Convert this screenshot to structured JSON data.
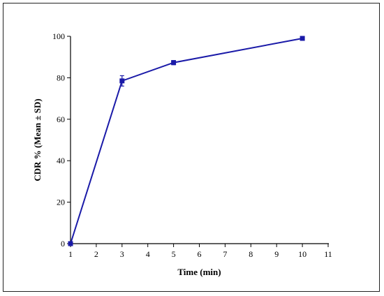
{
  "chart_data": {
    "type": "line",
    "xlabel": "Time (min)",
    "ylabel": "CDR % (Mean ± SD)",
    "xlim": [
      1,
      11
    ],
    "ylim": [
      0,
      100
    ],
    "x_ticks": [
      "1",
      "2",
      "3",
      "4",
      "5",
      "6",
      "7",
      "8",
      "9",
      "10",
      "11"
    ],
    "y_ticks": [
      "0",
      "20",
      "40",
      "60",
      "80",
      "100"
    ],
    "grid": false,
    "legend": "none",
    "series": [
      {
        "color": "#1a1aa8",
        "points": [
          {
            "x": 1,
            "y": 0,
            "sd": 0.5
          },
          {
            "x": 3,
            "y": 78.5,
            "sd": 2.5
          },
          {
            "x": 5,
            "y": 87.3,
            "sd": 1.0
          },
          {
            "x": 10,
            "y": 99.0,
            "sd": 0.5
          }
        ]
      }
    ]
  }
}
